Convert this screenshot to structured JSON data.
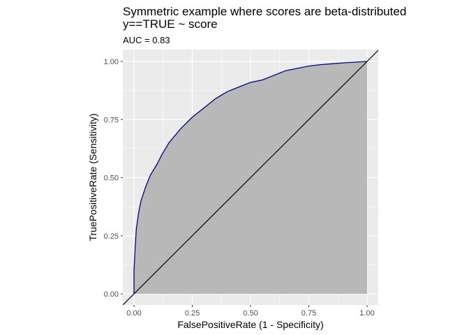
{
  "chart_data": {
    "type": "area",
    "title": "Symmetric example where scores are beta-distributed",
    "title_line2": "y==TRUE ~ score",
    "subtitle": "AUC = 0.83",
    "xlabel": "FalsePositiveRate (1 - Specificity)",
    "ylabel": "TruePositiveRate (Sensitivity)",
    "xlim": [
      0,
      1
    ],
    "ylim": [
      0,
      1
    ],
    "x_ticks": [
      "0.00",
      "0.25",
      "0.50",
      "0.75",
      "1.00"
    ],
    "y_ticks": [
      "0.00",
      "0.25",
      "0.50",
      "0.75",
      "1.00"
    ],
    "grid": true,
    "series": [
      {
        "role": "roc-curve",
        "x": [
          0.0,
          0.0,
          0.005,
          0.01,
          0.02,
          0.03,
          0.04,
          0.05,
          0.07,
          0.1,
          0.12,
          0.15,
          0.2,
          0.25,
          0.3,
          0.35,
          0.4,
          0.45,
          0.5,
          0.55,
          0.6,
          0.65,
          0.7,
          0.75,
          0.8,
          0.85,
          0.9,
          0.95,
          1.0
        ],
        "y": [
          0.0,
          0.1,
          0.2,
          0.28,
          0.35,
          0.4,
          0.43,
          0.46,
          0.51,
          0.56,
          0.6,
          0.65,
          0.71,
          0.76,
          0.8,
          0.84,
          0.87,
          0.89,
          0.91,
          0.92,
          0.94,
          0.96,
          0.97,
          0.98,
          0.986,
          0.99,
          0.994,
          0.997,
          1.0
        ]
      },
      {
        "role": "diagonal",
        "x": [
          -0.05,
          1.05
        ],
        "y": [
          -0.05,
          1.05
        ]
      }
    ],
    "colors": {
      "panel": "#ebebeb",
      "grid": "#ffffff",
      "area_fill": "#b8b8b8",
      "curve": "#00008b",
      "diagonal": "#000000"
    }
  }
}
